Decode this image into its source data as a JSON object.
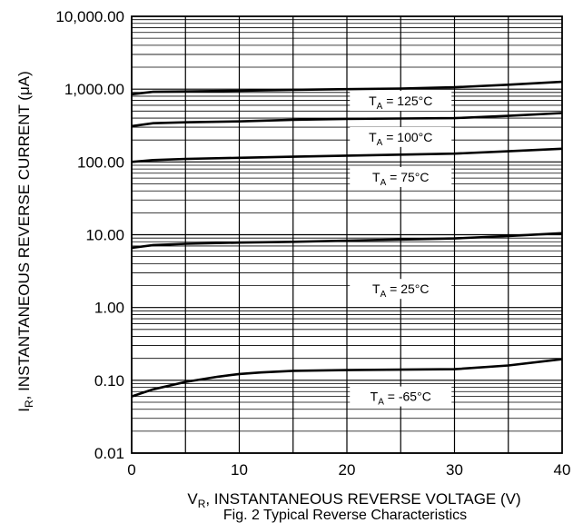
{
  "chart_data": {
    "type": "line",
    "caption": "Fig. 2 Typical Reverse Characteristics",
    "xlabel": {
      "symbol": "V",
      "sub": "R",
      "text": ", INSTANTANEOUS REVERSE VOLTAGE (V)"
    },
    "ylabel": {
      "symbol": "I",
      "sub": "R",
      "text": ", INSTANTANEOUS REVERSE CURRENT (μA)"
    },
    "xlim": [
      0,
      40
    ],
    "ylim": [
      0.01,
      10000
    ],
    "yscale": "log",
    "grid": true,
    "x_ticks": [
      {
        "value": 0,
        "label": "0"
      },
      {
        "value": 10,
        "label": "10"
      },
      {
        "value": 20,
        "label": "20"
      },
      {
        "value": 30,
        "label": "30"
      },
      {
        "value": 40,
        "label": "40"
      }
    ],
    "y_ticks": [
      {
        "value": 0.01,
        "label": "0.01"
      },
      {
        "value": 0.1,
        "label": "0.10"
      },
      {
        "value": 1,
        "label": "1.00"
      },
      {
        "value": 10,
        "label": "10.00"
      },
      {
        "value": 100,
        "label": "100.00"
      },
      {
        "value": 1000,
        "label": "1,000.00"
      },
      {
        "value": 10000,
        "label": "10,000.00"
      }
    ],
    "series": [
      {
        "name": "T_A = 125°C",
        "label_main": "T",
        "label_sub": "A",
        "label_rest": " = 125°C",
        "label_at": {
          "x": 25,
          "y": 690
        },
        "x": [
          0,
          2,
          5,
          10,
          15,
          20,
          25,
          30,
          35,
          40
        ],
        "y": [
          850,
          920,
          930,
          950,
          980,
          1000,
          1020,
          1060,
          1150,
          1260
        ]
      },
      {
        "name": "T_A = 100°C",
        "label_main": "T",
        "label_sub": "A",
        "label_rest": " = 100°C",
        "label_at": {
          "x": 25,
          "y": 220
        },
        "x": [
          0,
          2,
          5,
          10,
          15,
          20,
          25,
          30,
          35,
          40
        ],
        "y": [
          310,
          340,
          350,
          360,
          380,
          390,
          395,
          400,
          430,
          470
        ]
      },
      {
        "name": "T_A = 75°C",
        "label_main": "T",
        "label_sub": "A",
        "label_rest": " = 75°C",
        "label_at": {
          "x": 25,
          "y": 62
        },
        "x": [
          0,
          2,
          5,
          10,
          15,
          20,
          25,
          30,
          35,
          40
        ],
        "y": [
          100,
          106,
          110,
          114,
          118,
          122,
          126,
          130,
          140,
          152
        ]
      },
      {
        "name": "T_A = 25°C",
        "label_main": "T",
        "label_sub": "A",
        "label_rest": " = 25°C",
        "label_at": {
          "x": 25,
          "y": 1.8
        },
        "x": [
          0,
          2,
          5,
          10,
          15,
          20,
          25,
          30,
          35,
          40
        ],
        "y": [
          6.6,
          7.2,
          7.5,
          7.8,
          8.0,
          8.3,
          8.6,
          8.9,
          9.6,
          10.5
        ]
      },
      {
        "name": "T_A = -65°C",
        "label_main": "T",
        "label_sub": "A",
        "label_rest": " = -65°C",
        "label_at": {
          "x": 25,
          "y": 0.06
        },
        "x": [
          0,
          2,
          5,
          8,
          10,
          12,
          15,
          20,
          25,
          30,
          35,
          40
        ],
        "y": [
          0.06,
          0.075,
          0.095,
          0.112,
          0.122,
          0.128,
          0.135,
          0.138,
          0.14,
          0.142,
          0.16,
          0.195
        ]
      }
    ]
  }
}
